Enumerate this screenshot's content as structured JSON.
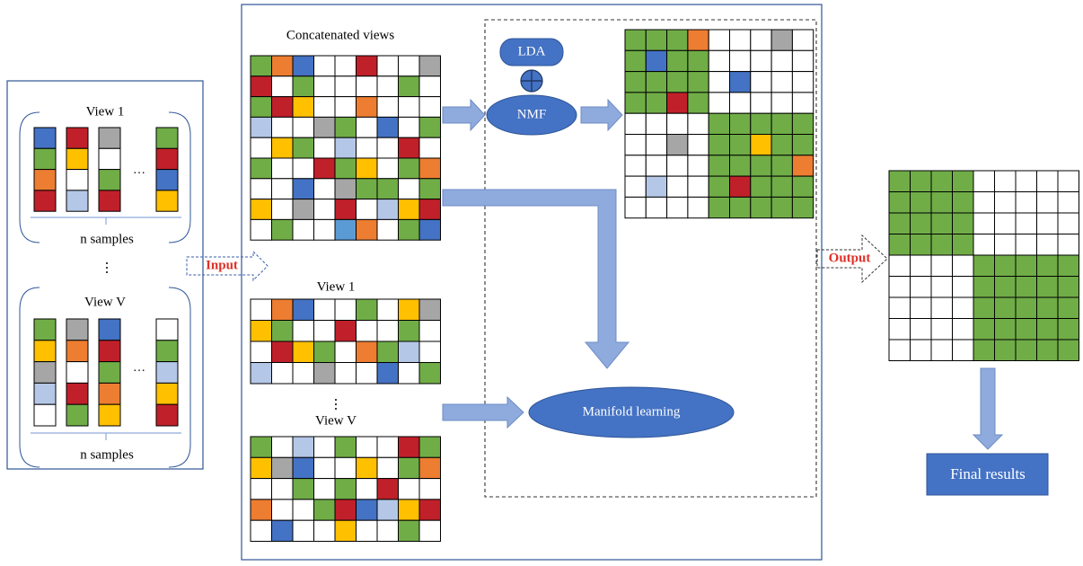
{
  "colors": {
    "G": "#70ad47",
    "B": "#4472c4",
    "R": "#c0202a",
    "O": "#ed7d31",
    "Y": "#ffc000",
    "X": "#a6a6a6",
    "L": "#b4c7e7",
    "K": "#5b9bd5",
    "W": "#ffffff",
    "frame": "#2f5597",
    "arrow": "#8faadc",
    "arrowStroke": "#6e8cc6",
    "ellipse": "#4472c4",
    "red_text": "#e03028"
  },
  "left_panel": {
    "view1_label": "View 1",
    "viewV_label": "View V",
    "n_samples_1": "n samples",
    "n_samples_2": "n samples",
    "ellipsis_mid": "⋮",
    "ellipsis_row1": "…",
    "ellipsis_row2": "…",
    "view1_columns": [
      [
        "B",
        "G",
        "O",
        "R"
      ],
      [
        "R",
        "Y",
        "W",
        "L"
      ],
      [
        "X",
        "W",
        "G",
        "R"
      ],
      [
        "G",
        "R",
        "B",
        "Y"
      ]
    ],
    "viewV_columns": [
      [
        "G",
        "Y",
        "X",
        "L",
        "W"
      ],
      [
        "X",
        "O",
        "W",
        "R",
        "G"
      ],
      [
        "B",
        "R",
        "G",
        "O",
        "Y"
      ],
      [
        "W",
        "G",
        "L",
        "Y",
        "R"
      ]
    ]
  },
  "arrows": {
    "input_label": "Input",
    "output_label": "Output"
  },
  "middle_panel": {
    "concat_label": "Concatenated views",
    "view1_label": "View 1",
    "viewV_label": "View V",
    "ellipsis": "⋮",
    "concat_matrix": [
      [
        "G",
        "O",
        "B",
        "W",
        "W",
        "R",
        "W",
        "W",
        "X"
      ],
      [
        "R",
        "W",
        "G",
        "W",
        "W",
        "W",
        "W",
        "G",
        "W"
      ],
      [
        "G",
        "R",
        "Y",
        "W",
        "W",
        "O",
        "W",
        "W",
        "W"
      ],
      [
        "L",
        "W",
        "W",
        "X",
        "G",
        "W",
        "B",
        "W",
        "G"
      ],
      [
        "W",
        "Y",
        "G",
        "W",
        "L",
        "W",
        "W",
        "R",
        "W"
      ],
      [
        "G",
        "W",
        "W",
        "R",
        "G",
        "Y",
        "W",
        "G",
        "O"
      ],
      [
        "W",
        "W",
        "B",
        "W",
        "X",
        "G",
        "G",
        "W",
        "G"
      ],
      [
        "Y",
        "W",
        "X",
        "W",
        "R",
        "W",
        "L",
        "Y",
        "R"
      ],
      [
        "W",
        "G",
        "W",
        "W",
        "K",
        "O",
        "W",
        "G",
        "B"
      ]
    ],
    "view1_matrix": [
      [
        "W",
        "O",
        "B",
        "W",
        "W",
        "G",
        "W",
        "Y",
        "X"
      ],
      [
        "Y",
        "G",
        "W",
        "W",
        "R",
        "W",
        "W",
        "G",
        "W"
      ],
      [
        "W",
        "R",
        "Y",
        "G",
        "W",
        "O",
        "G",
        "L",
        "W"
      ],
      [
        "L",
        "W",
        "W",
        "X",
        "W",
        "W",
        "B",
        "W",
        "G"
      ]
    ],
    "viewV_matrix": [
      [
        "G",
        "W",
        "L",
        "W",
        "G",
        "W",
        "W",
        "R",
        "G"
      ],
      [
        "Y",
        "X",
        "B",
        "W",
        "W",
        "Y",
        "W",
        "G",
        "O"
      ],
      [
        "W",
        "W",
        "G",
        "W",
        "G",
        "W",
        "R",
        "W",
        "W"
      ],
      [
        "O",
        "W",
        "W",
        "G",
        "R",
        "B",
        "L",
        "Y",
        "R"
      ],
      [
        "W",
        "B",
        "W",
        "W",
        "Y",
        "W",
        "W",
        "G",
        "W"
      ]
    ]
  },
  "method_box": {
    "lda_label": "LDA",
    "nmf_label": "NMF",
    "manifold_label": "Manifold learning",
    "output_matrix": [
      [
        "G",
        "G",
        "G",
        "O",
        "W",
        "W",
        "W",
        "X",
        "W"
      ],
      [
        "G",
        "B",
        "G",
        "G",
        "W",
        "W",
        "W",
        "W",
        "W"
      ],
      [
        "G",
        "G",
        "G",
        "G",
        "W",
        "B",
        "W",
        "W",
        "W"
      ],
      [
        "G",
        "G",
        "R",
        "G",
        "W",
        "W",
        "W",
        "W",
        "W"
      ],
      [
        "W",
        "W",
        "W",
        "W",
        "G",
        "G",
        "G",
        "G",
        "G"
      ],
      [
        "W",
        "W",
        "X",
        "W",
        "G",
        "G",
        "Y",
        "G",
        "G"
      ],
      [
        "W",
        "W",
        "W",
        "W",
        "G",
        "G",
        "G",
        "G",
        "O"
      ],
      [
        "W",
        "L",
        "W",
        "W",
        "G",
        "R",
        "G",
        "G",
        "G"
      ],
      [
        "W",
        "W",
        "W",
        "W",
        "G",
        "G",
        "G",
        "G",
        "G"
      ]
    ]
  },
  "result": {
    "final_label": "Final results",
    "matrix": [
      [
        "G",
        "G",
        "G",
        "G",
        "W",
        "W",
        "W",
        "W",
        "W"
      ],
      [
        "G",
        "G",
        "G",
        "G",
        "W",
        "W",
        "W",
        "W",
        "W"
      ],
      [
        "G",
        "G",
        "G",
        "G",
        "W",
        "W",
        "W",
        "W",
        "W"
      ],
      [
        "G",
        "G",
        "G",
        "G",
        "W",
        "W",
        "W",
        "W",
        "W"
      ],
      [
        "W",
        "W",
        "W",
        "W",
        "G",
        "G",
        "G",
        "G",
        "G"
      ],
      [
        "W",
        "W",
        "W",
        "W",
        "G",
        "G",
        "G",
        "G",
        "G"
      ],
      [
        "W",
        "W",
        "W",
        "W",
        "G",
        "G",
        "G",
        "G",
        "G"
      ],
      [
        "W",
        "W",
        "W",
        "W",
        "G",
        "G",
        "G",
        "G",
        "G"
      ],
      [
        "W",
        "W",
        "W",
        "W",
        "G",
        "G",
        "G",
        "G",
        "G"
      ]
    ]
  }
}
